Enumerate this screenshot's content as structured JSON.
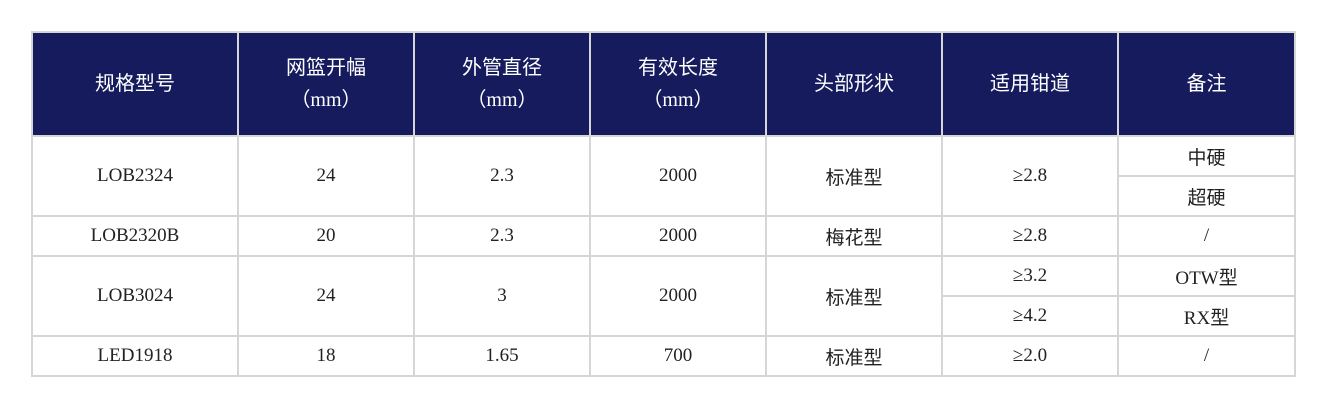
{
  "header": {
    "model": "规格型号",
    "basket": "网篮开幅",
    "basket_unit": "（mm）",
    "tube": "外管直径",
    "tube_unit": "（mm）",
    "length": "有效长度",
    "length_unit": "（mm）",
    "head": "头部形状",
    "channel": "适用钳道",
    "note": "备注"
  },
  "rows": [
    {
      "model": "LOB2324",
      "basket": "24",
      "tube": "2.3",
      "length": "2000",
      "head": "标准型",
      "channel": [
        "≥2.8"
      ],
      "note": [
        "中硬",
        "超硬"
      ]
    },
    {
      "model": "LOB2320B",
      "basket": "20",
      "tube": "2.3",
      "length": "2000",
      "head": "梅花型",
      "channel": [
        "≥2.8"
      ],
      "note": [
        "/"
      ]
    },
    {
      "model": "LOB3024",
      "basket": "24",
      "tube": "3",
      "length": "2000",
      "head": "标准型",
      "channel": [
        "≥3.2",
        "≥4.2"
      ],
      "note": [
        "OTW型",
        "RX型"
      ]
    },
    {
      "model": "LED1918",
      "basket": "18",
      "tube": "1.65",
      "length": "700",
      "head": "标准型",
      "channel": [
        "≥2.0"
      ],
      "note": [
        "/"
      ]
    }
  ],
  "colors": {
    "header_bg": "#161b5e",
    "header_text": "#ffffff",
    "border": "#d6d6d6"
  }
}
